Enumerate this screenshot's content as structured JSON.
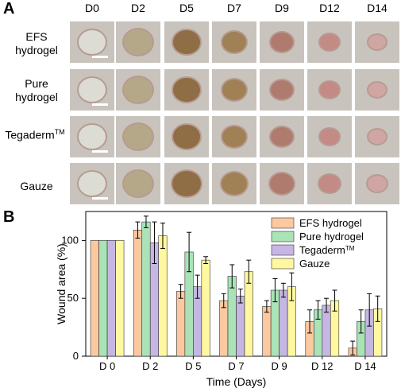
{
  "panels": {
    "a": "A",
    "b": "B"
  },
  "photo_grid": {
    "days": [
      "D0",
      "D2",
      "D5",
      "D7",
      "D9",
      "D12",
      "D14"
    ],
    "rows": [
      {
        "label_line1": "EFS",
        "label_line2": "hydrogel"
      },
      {
        "label_line1": "Pure",
        "label_line2": "hydrogel"
      },
      {
        "label_line1": "Tegaderm",
        "label_sup": "TM"
      },
      {
        "label_line1": "Gauze"
      }
    ],
    "skin_color": "#c9c3bd",
    "wound_colors": [
      "#dcdcd4",
      "#b5a888",
      "#8f6d45",
      "#a08055",
      "#b07b6f",
      "#c48a86",
      "#cfa6a3"
    ]
  },
  "chart_data": {
    "type": "bar",
    "categories": [
      "D 0",
      "D 2",
      "D 5",
      "D 7",
      "D 9",
      "D 12",
      "D 14"
    ],
    "series": [
      {
        "name": "EFS hydrogel",
        "color": "#fcc8a0",
        "values": [
          100,
          109,
          56,
          48,
          43,
          30,
          7
        ],
        "errors": [
          0,
          7,
          6,
          6,
          5,
          10,
          6
        ]
      },
      {
        "name": "Pure hydrogel",
        "color": "#a9e3b6",
        "values": [
          100,
          116,
          90,
          69,
          57,
          40,
          30
        ],
        "errors": [
          0,
          5,
          17,
          10,
          10,
          8,
          10
        ]
      },
      {
        "name": "Tegaderm",
        "name_sup": "TM",
        "color": "#c6b6e3",
        "values": [
          100,
          98,
          60,
          52,
          57,
          44,
          40
        ],
        "errors": [
          0,
          18,
          10,
          6,
          6,
          6,
          14
        ]
      },
      {
        "name": "Gauze",
        "color": "#fff8a0",
        "values": [
          100,
          104,
          83,
          73,
          60,
          48,
          41
        ],
        "errors": [
          0,
          11,
          3,
          10,
          12,
          9,
          11
        ]
      }
    ],
    "xlabel": "Time (Days)",
    "ylabel": "Wound area (%)",
    "ylim": [
      0,
      125
    ],
    "yticks": [
      0,
      50,
      100
    ],
    "legend": "top-right",
    "grid": false
  }
}
